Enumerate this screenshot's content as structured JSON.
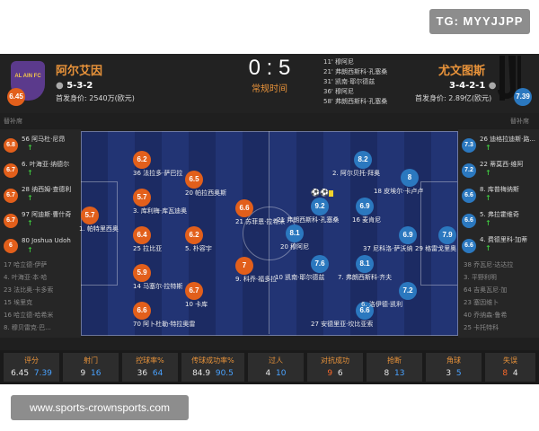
{
  "watermark_top": "TG: MYYJJPP",
  "watermark_bottom": "www.sports-crownsports.com",
  "match": {
    "score": "0 : 5",
    "status": "常规时间",
    "goals": [
      "11' 穆阿尼",
      "21' 弗朗西斯科·孔塞桑",
      "31' 凯南·耶尔德兹",
      "36' 穆阿尼",
      "58' 弗朗西斯科·孔塞桑"
    ]
  },
  "home": {
    "name": "阿尔艾因",
    "logo_text": "AL AIN FC",
    "formation": "5-3-2",
    "value": "首发身价: 2540万(欧元)",
    "rating": "6.45",
    "color": "#e25f1b"
  },
  "away": {
    "name": "尤文图斯",
    "formation": "3-4-2-1",
    "value": "首发身价: 2.89亿(欧元)",
    "rating": "7.39",
    "color": "#2b78bf"
  },
  "home_bench_label": "替补席",
  "away_bench_label": "替补席",
  "home_bench": [
    {
      "text": "56 阿马杜·尼昂",
      "rating": "6.8"
    },
    {
      "text": "6. 叶海亚·纳德尔",
      "rating": "6.7"
    },
    {
      "text": "28 纳西姆·查德利",
      "rating": "6.7"
    },
    {
      "text": "97 阿迪斯·曹什奇",
      "rating": "6.7"
    },
    {
      "text": "80 Joshua Udoh",
      "rating": "6"
    },
    {
      "text": "17 哈立德·伊萨"
    },
    {
      "text": "4. 叶海亚·本·哈"
    },
    {
      "text": "23 法比奥·卡多索"
    },
    {
      "text": "15 埃里克"
    },
    {
      "text": "16 哈立德·哈希米"
    },
    {
      "text": "8. 穆贝雷克·巴..."
    }
  ],
  "away_bench": [
    {
      "text": "26 迪格拉迪斯·路...",
      "rating": "7.3"
    },
    {
      "text": "22 蒂莫西·维阿",
      "rating": "7.2"
    },
    {
      "text": "8. 库普梅纳斯",
      "rating": "6.6"
    },
    {
      "text": "5. 弗拉霍维奇",
      "rating": "6.6"
    },
    {
      "text": "4. 费德里科·加蒂",
      "rating": "6.6"
    },
    {
      "text": "38 乔瓦尼·达达拉"
    },
    {
      "text": "3. 平野利明"
    },
    {
      "text": "64 吉奥瓦尼·加"
    },
    {
      "text": "23 塞因维卜"
    },
    {
      "text": "40 乔纳森·鲁希"
    },
    {
      "text": "25 卡托特科"
    }
  ],
  "home_players": [
    {
      "name": "1. 帕特里西奥",
      "rating": "5.7"
    },
    {
      "name": "36 法拉多·萨巴拉",
      "rating": "6.2"
    },
    {
      "name": "3. 库利梅·库瓦迪奥",
      "rating": "5.7"
    },
    {
      "name": "25 拉比亚",
      "rating": "6.4"
    },
    {
      "name": "14 马塞尔·拉特斯",
      "rating": "5.9"
    },
    {
      "name": "70 阿卜杜勒·特拉奥雷",
      "rating": "6.6"
    },
    {
      "name": "20 帕拉西奥斯",
      "rating": "6.5"
    },
    {
      "name": "5. 朴容宇",
      "rating": "6.2"
    },
    {
      "name": "10 卡库",
      "rating": "6.7"
    },
    {
      "name": "21 苏菲恩·拉希米",
      "rating": "6.6"
    },
    {
      "name": "9. 科乔·福多拉",
      "rating": "7"
    }
  ],
  "away_players": [
    {
      "name": "2. 阿尔贝托·拜奥",
      "rating": "8.2"
    },
    {
      "name": "21 弗朗西斯科·孔塞桑",
      "rating": "9.2"
    },
    {
      "name": "20 穆阿尼",
      "rating": "8.1"
    },
    {
      "name": "10 凯南·耶尔德兹",
      "rating": "7.6"
    },
    {
      "name": "7. 弗朗西斯科·齐夫",
      "rating": "8.1"
    },
    {
      "name": "27 安德里亚·坎比亚索",
      "rating": "6.6"
    },
    {
      "name": "16 麦肯尼",
      "rating": "6.9"
    },
    {
      "name": "18 皮埃尔·卡卢卢",
      "rating": "8"
    },
    {
      "name": "37 尼科洛·萨沃纳",
      "rating": "6.9"
    },
    {
      "name": "6. 洛伊德·凯利",
      "rating": "7.2"
    },
    {
      "name": "29 格雷戈里奥",
      "rating": "7.9"
    }
  ],
  "stats": [
    {
      "label": "评分",
      "home": "6.45",
      "away": "7.39"
    },
    {
      "label": "射门",
      "home": "9",
      "away": "16"
    },
    {
      "label": "控球率%",
      "home": "36",
      "away": "64"
    },
    {
      "label": "传球成功率%",
      "home": "84.9",
      "away": "90.5"
    },
    {
      "label": "过人",
      "home": "4",
      "away": "10"
    },
    {
      "label": "对抗成功",
      "home": "9",
      "away": "6"
    },
    {
      "label": "抢断",
      "home": "8",
      "away": "13"
    },
    {
      "label": "角球",
      "home": "3",
      "away": "5"
    },
    {
      "label": "失误",
      "home": "8",
      "away": "4"
    }
  ]
}
